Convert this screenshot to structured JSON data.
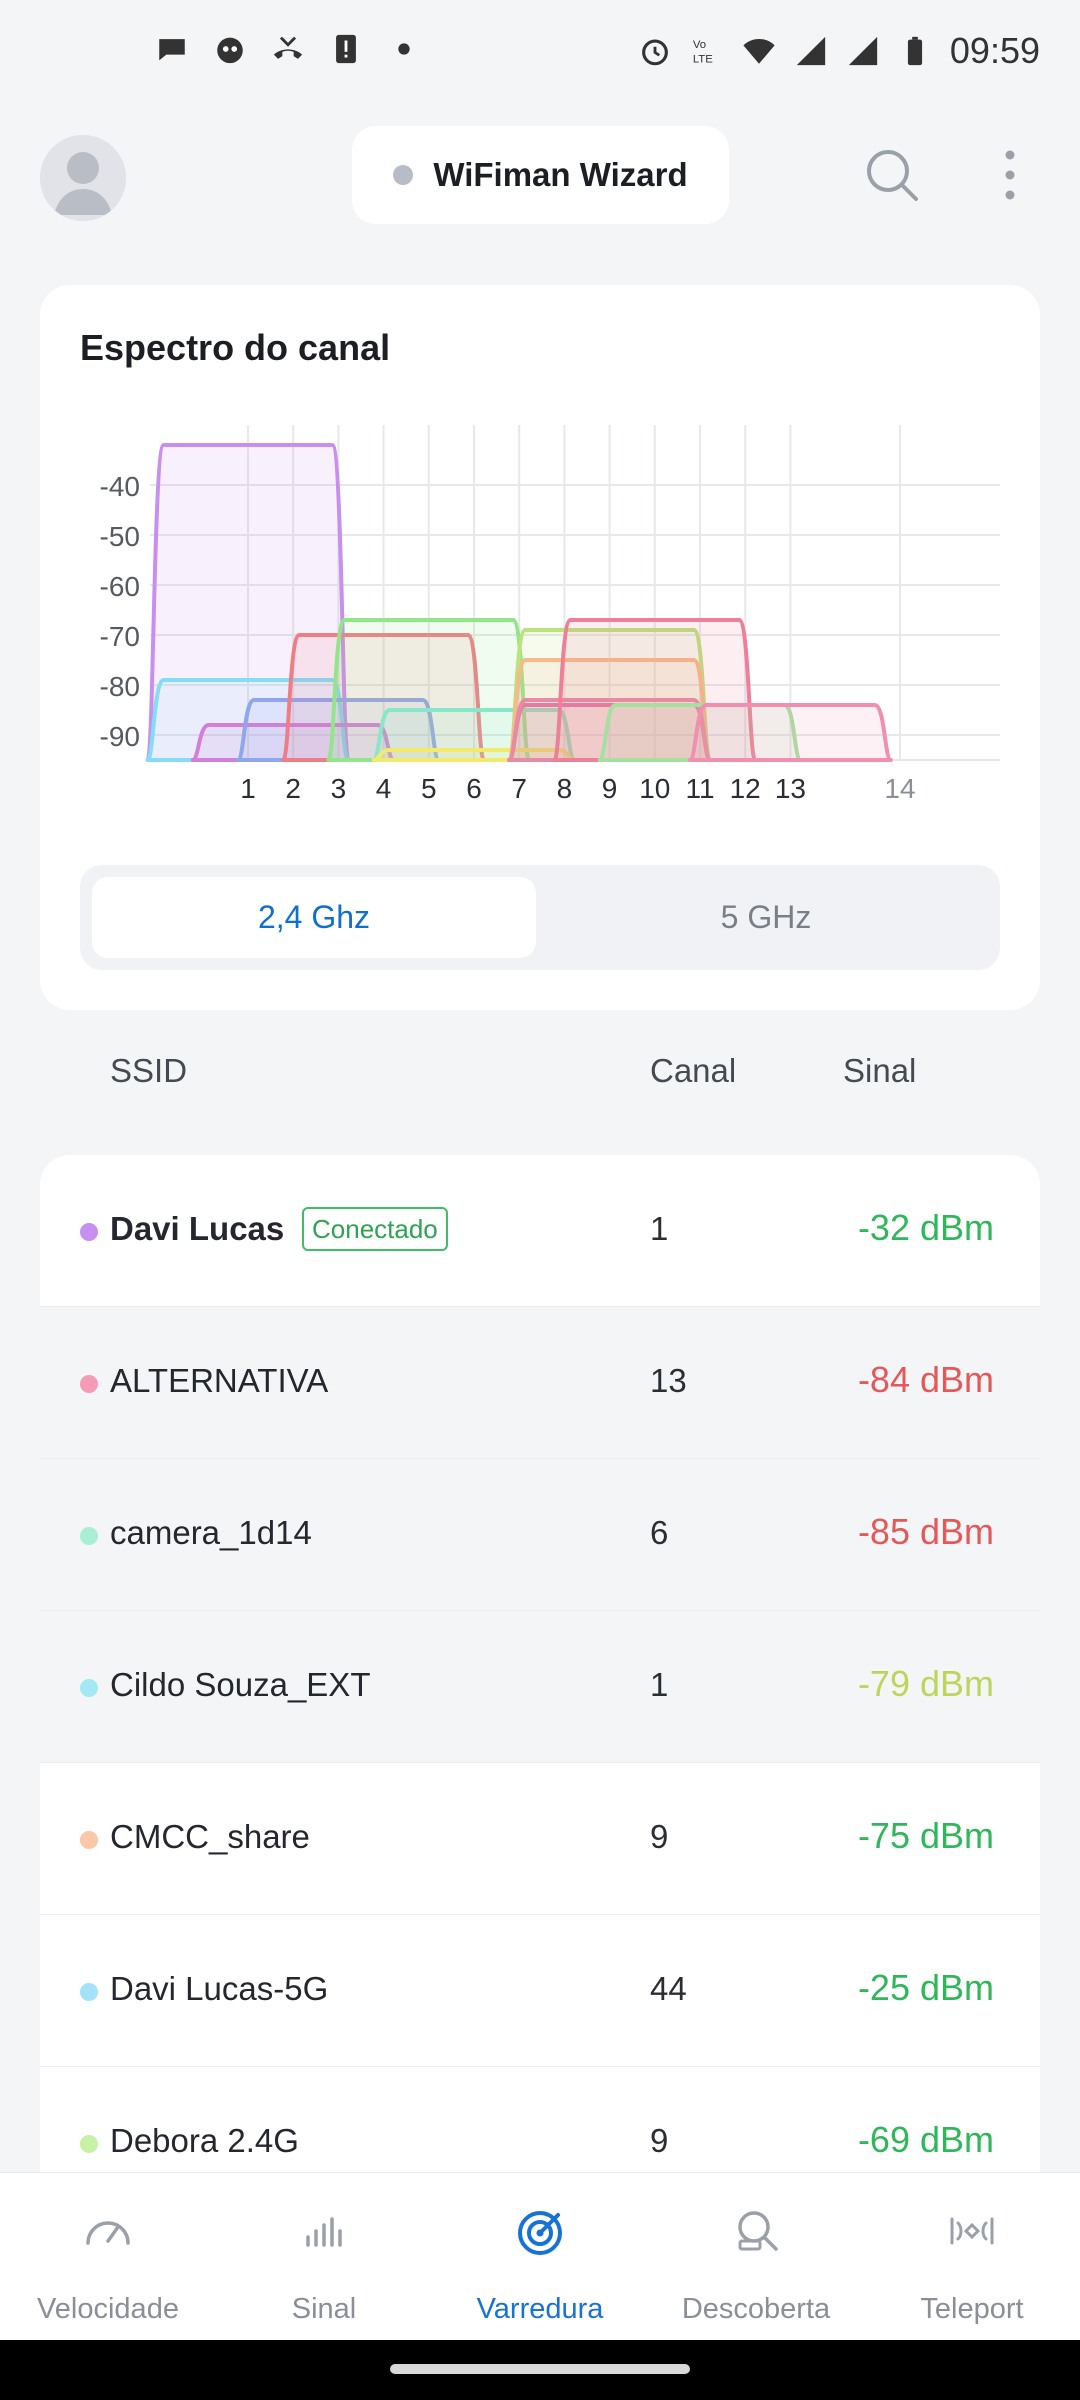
{
  "status_bar": {
    "time": "09:59",
    "left_icons": [
      "chat-bubble-icon",
      "robot-face-icon",
      "missed-call-icon",
      "alert-icon",
      "dot-icon"
    ],
    "right_icons": [
      "alarm-icon",
      "volte-icon",
      "wifi-icon",
      "signal-icon",
      "signal-icon",
      "battery-icon"
    ]
  },
  "header": {
    "title": "WiFiman Wizard",
    "status_dot_color": "#b7bcc6"
  },
  "spectrum": {
    "title": "Espectro do canal",
    "tabs": [
      {
        "label": "2,4 Ghz",
        "active": true
      },
      {
        "label": "5 GHz",
        "active": false
      }
    ]
  },
  "chart_data": {
    "type": "area",
    "yticks": [
      -40,
      -50,
      -60,
      -70,
      -80,
      -90
    ],
    "ylim": [
      -95,
      -30
    ],
    "xticks": [
      "1",
      "2",
      "3",
      "4",
      "5",
      "6",
      "7",
      "8",
      "9",
      "10",
      "11",
      "12",
      "13",
      "14"
    ],
    "series": [
      {
        "channel": 1,
        "dbm": -32,
        "color": "#c68ff0"
      },
      {
        "channel": 1,
        "dbm": -79,
        "color": "#84dcf5"
      },
      {
        "channel": 2,
        "dbm": -88,
        "color": "#d37ed8"
      },
      {
        "channel": 3,
        "dbm": -83,
        "color": "#8fa5ec"
      },
      {
        "channel": 4,
        "dbm": -70,
        "color": "#f07c86"
      },
      {
        "channel": 5,
        "dbm": -67,
        "color": "#93e58a"
      },
      {
        "channel": 6,
        "dbm": -85,
        "color": "#88e6c9"
      },
      {
        "channel": 6,
        "dbm": -93,
        "color": "#f2ea6a"
      },
      {
        "channel": 9,
        "dbm": -69,
        "color": "#bde27a"
      },
      {
        "channel": 9,
        "dbm": -75,
        "color": "#f7b989"
      },
      {
        "channel": 9,
        "dbm": -84,
        "color": "#e47aa0"
      },
      {
        "channel": 9,
        "dbm": -83,
        "color": "#e88aa6"
      },
      {
        "channel": 10,
        "dbm": -67,
        "color": "#ee7f98"
      },
      {
        "channel": 11,
        "dbm": -84,
        "color": "#a6e0a1"
      },
      {
        "channel": 13,
        "dbm": -84,
        "color": "#f28fb0"
      }
    ]
  },
  "table": {
    "col_ssid": "SSID",
    "col_channel": "Canal",
    "col_signal": "Sinal",
    "connected_label": "Conectado",
    "rows": [
      {
        "ssid": "Davi Lucas",
        "channel": "1",
        "signal": "-32 dBm",
        "dot_color": "#c68ff0",
        "signal_color": "#2fb75a",
        "connected": true,
        "highlight": true
      },
      {
        "ssid": "ALTERNATIVA",
        "channel": "13",
        "signal": "-84 dBm",
        "dot_color": "#f59bb8",
        "signal_color": "#e35858",
        "connected": false,
        "highlight": false
      },
      {
        "ssid": "camera_1d14",
        "channel": "6",
        "signal": "-85 dBm",
        "dot_color": "#a9efd6",
        "signal_color": "#e35858",
        "connected": false,
        "highlight": false
      },
      {
        "ssid": "Cildo Souza_EXT",
        "channel": "1",
        "signal": "-79 dBm",
        "dot_color": "#a5e8f5",
        "signal_color": "#bcd55a",
        "connected": false,
        "highlight": false
      },
      {
        "ssid": "CMCC_share",
        "channel": "9",
        "signal": "-75 dBm",
        "dot_color": "#f8c8a8",
        "signal_color": "#2fb75a",
        "connected": false,
        "highlight": true
      },
      {
        "ssid": "Davi Lucas-5G",
        "channel": "44",
        "signal": "-25 dBm",
        "dot_color": "#a3e2f7",
        "signal_color": "#2fb75a",
        "connected": false,
        "highlight": true
      },
      {
        "ssid": "Debora 2.4G",
        "channel": "9",
        "signal": "-69 dBm",
        "dot_color": "#c6f2a4",
        "signal_color": "#2fb75a",
        "connected": false,
        "highlight": true
      }
    ]
  },
  "bottom_nav": [
    {
      "label": "Velocidade",
      "icon": "speedometer-icon",
      "active": false
    },
    {
      "label": "Sinal",
      "icon": "signal-bars-icon",
      "active": false
    },
    {
      "label": "Varredura",
      "icon": "radar-icon",
      "active": true
    },
    {
      "label": "Descoberta",
      "icon": "discovery-icon",
      "active": false
    },
    {
      "label": "Teleport",
      "icon": "teleport-icon",
      "active": false
    }
  ]
}
